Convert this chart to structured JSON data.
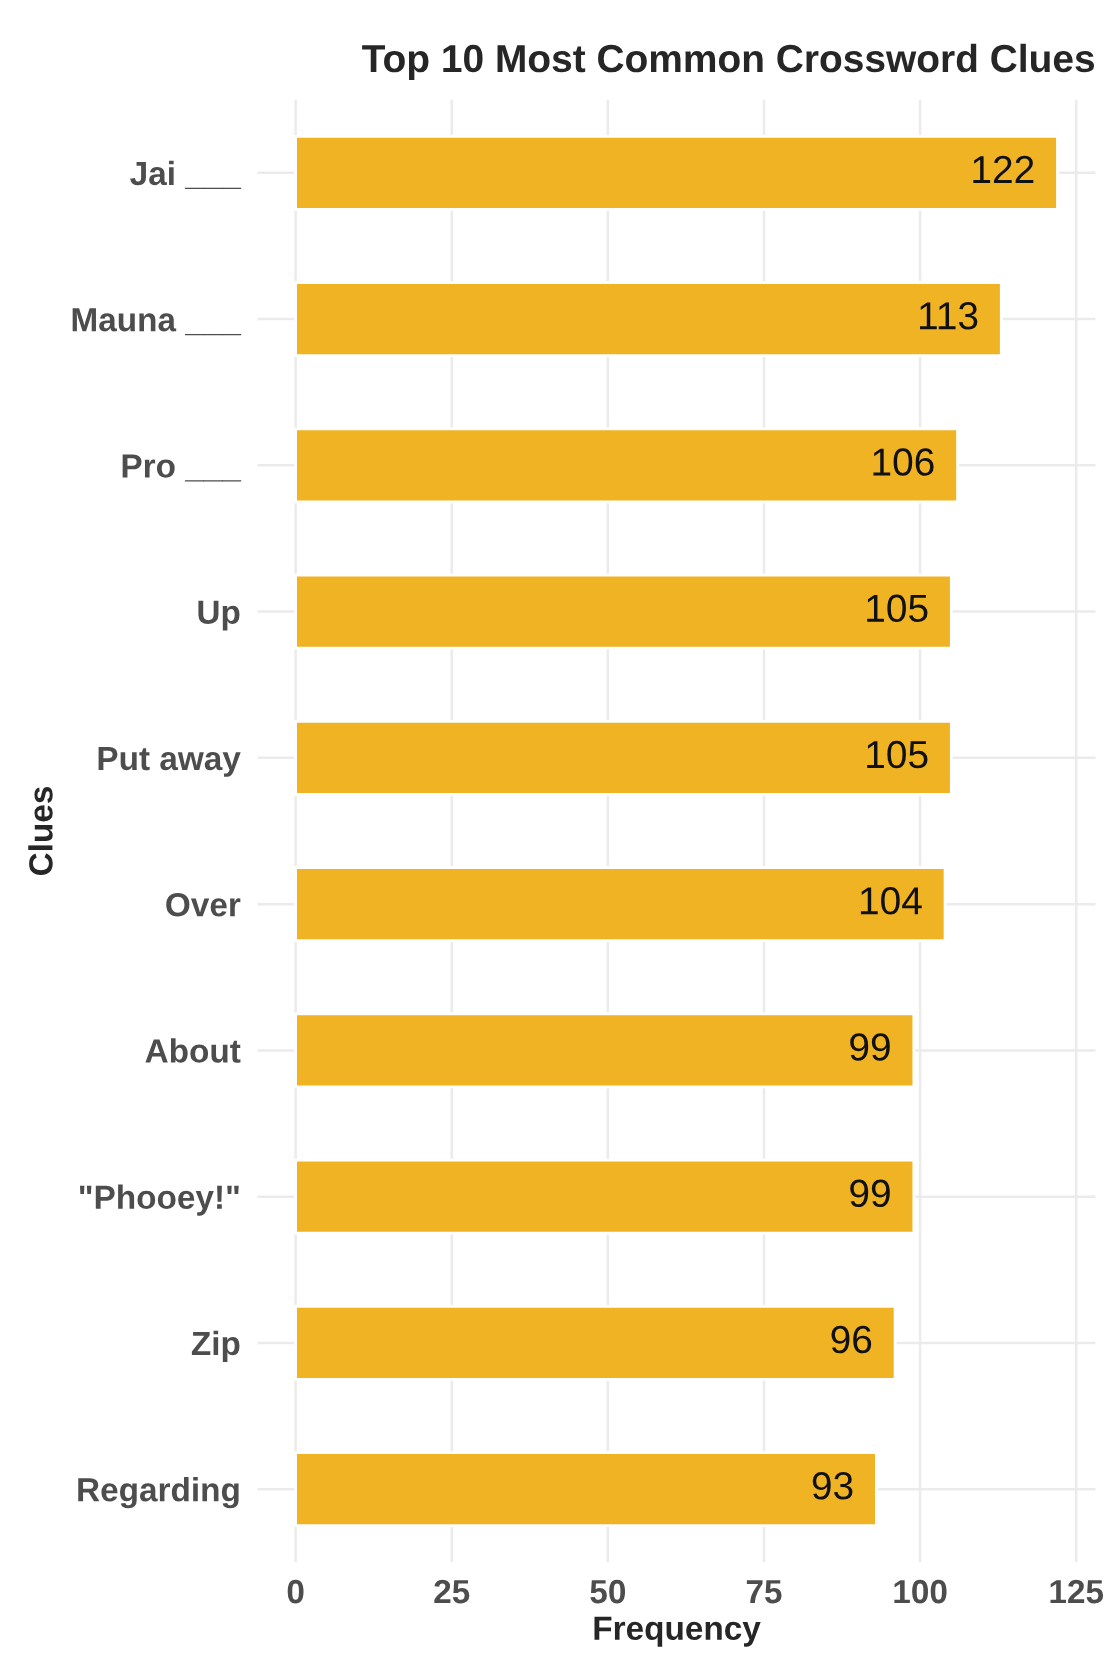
{
  "chart_data": {
    "type": "bar",
    "orientation": "horizontal",
    "title": "Top 10 Most Common Crossword Clues",
    "xlabel": "Frequency",
    "ylabel": "Clues",
    "categories": [
      "Jai ___",
      "Mauna ___",
      "Pro ___",
      "Up",
      "Put away",
      "Over",
      "About",
      "\"Phooey!\"",
      "Zip",
      "Regarding"
    ],
    "values": [
      122,
      113,
      106,
      105,
      105,
      104,
      99,
      99,
      96,
      93
    ],
    "color": "#efb324",
    "data_labels": true,
    "xlim": [
      -6.1,
      128.1
    ],
    "xticks": [
      0,
      25,
      50,
      75,
      100,
      125
    ],
    "grid": true,
    "legend": false
  }
}
